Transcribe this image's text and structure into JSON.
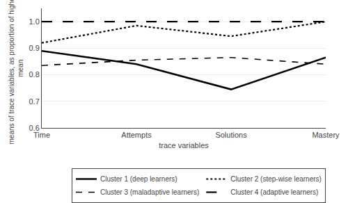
{
  "chart_data": {
    "type": "line",
    "categories": [
      "Time",
      "Attempts",
      "Solutions",
      "Mastery"
    ],
    "series": [
      {
        "name": "Cluster 1 (deep learners)",
        "color": "black",
        "line_style": "solid",
        "values": [
          0.89,
          0.84,
          0.745,
          0.865
        ]
      },
      {
        "name": "Cluster 2 (step-wise learners)",
        "color": "black",
        "line_style": "dotted",
        "values": [
          0.92,
          0.985,
          0.945,
          1.0
        ]
      },
      {
        "name": "Cluster 3 (maladaptive learners)",
        "color": "black",
        "line_style": "dashed",
        "values": [
          0.835,
          0.855,
          0.865,
          0.84
        ]
      },
      {
        "name": "Cluster 4 (adaptive learners)",
        "color": "black",
        "line_style": "long-dashed",
        "values": [
          1.0,
          1.0,
          1.0,
          1.0
        ]
      }
    ],
    "xlabel": "trace variables",
    "ylabel": "means of trace variables, as proportion of highest\nmean",
    "ylim": [
      0.6,
      1.05
    ],
    "yticks": [
      0.6,
      0.7,
      0.8,
      0.9,
      {
        "value": 1.0,
        "label": "1.0"
      }
    ],
    "grid": true,
    "legend": "lower right"
  }
}
